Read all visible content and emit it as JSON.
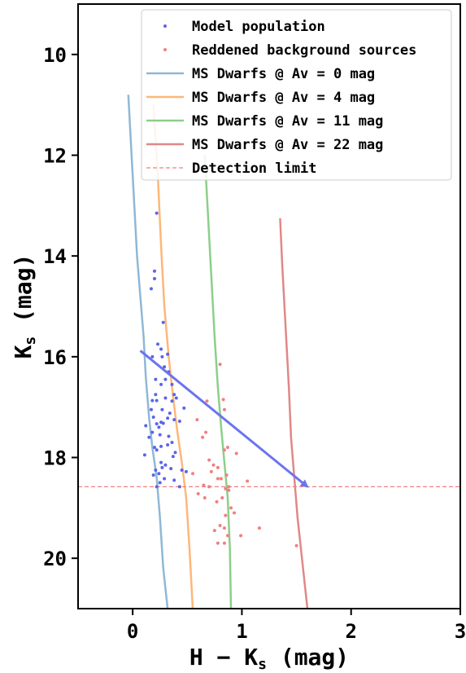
{
  "chart_data": {
    "type": "scatter",
    "xlabel": "H − K",
    "xlabel_sub": "s",
    "xlabel_unit": " (mag)",
    "ylabel": "K",
    "ylabel_sub": "s",
    "ylabel_unit": " (mag)",
    "xlim": [
      -0.5,
      3.0
    ],
    "ylim": [
      21.0,
      9.0
    ],
    "y_inverted": true,
    "xticks": [
      0,
      1,
      2,
      3
    ],
    "yticks": [
      10,
      12,
      14,
      16,
      18,
      20
    ],
    "legend_position": "top-right",
    "series": [
      {
        "name": "Model population",
        "kind": "scatter",
        "color": "#5b65e8",
        "points": [
          [
            0.22,
            13.15
          ],
          [
            0.2,
            14.3
          ],
          [
            0.17,
            14.65
          ],
          [
            0.2,
            14.45
          ],
          [
            0.28,
            15.32
          ],
          [
            0.26,
            15.85
          ],
          [
            0.23,
            15.75
          ],
          [
            0.27,
            16.0
          ],
          [
            0.32,
            15.95
          ],
          [
            0.18,
            16.0
          ],
          [
            0.33,
            16.3
          ],
          [
            0.29,
            16.2
          ],
          [
            0.21,
            16.45
          ],
          [
            0.26,
            16.55
          ],
          [
            0.3,
            16.45
          ],
          [
            0.36,
            16.55
          ],
          [
            0.21,
            16.75
          ],
          [
            0.3,
            16.82
          ],
          [
            0.38,
            16.75
          ],
          [
            0.18,
            16.87
          ],
          [
            0.22,
            16.87
          ],
          [
            0.36,
            16.88
          ],
          [
            0.4,
            16.82
          ],
          [
            0.47,
            17.02
          ],
          [
            0.17,
            17.05
          ],
          [
            0.27,
            17.05
          ],
          [
            0.34,
            17.12
          ],
          [
            0.19,
            17.2
          ],
          [
            0.32,
            17.22
          ],
          [
            0.38,
            17.25
          ],
          [
            0.43,
            17.28
          ],
          [
            0.26,
            17.3
          ],
          [
            0.28,
            17.32
          ],
          [
            0.22,
            17.33
          ],
          [
            0.12,
            17.37
          ],
          [
            0.24,
            17.4
          ],
          [
            0.18,
            17.5
          ],
          [
            0.25,
            17.55
          ],
          [
            0.33,
            17.58
          ],
          [
            0.15,
            17.6
          ],
          [
            0.36,
            17.7
          ],
          [
            0.32,
            17.75
          ],
          [
            0.26,
            17.78
          ],
          [
            0.2,
            17.8
          ],
          [
            0.22,
            17.85
          ],
          [
            0.39,
            17.9
          ],
          [
            0.11,
            17.95
          ],
          [
            0.37,
            17.98
          ],
          [
            0.26,
            18.1
          ],
          [
            0.3,
            18.15
          ],
          [
            0.27,
            18.2
          ],
          [
            0.35,
            18.22
          ],
          [
            0.21,
            18.25
          ],
          [
            0.24,
            18.32
          ],
          [
            0.45,
            18.25
          ],
          [
            0.49,
            18.28
          ],
          [
            0.19,
            18.35
          ],
          [
            0.29,
            18.42
          ],
          [
            0.38,
            18.45
          ],
          [
            0.25,
            18.5
          ],
          [
            0.43,
            18.58
          ],
          [
            0.22,
            18.58
          ]
        ]
      },
      {
        "name": "Reddened background sources",
        "kind": "scatter",
        "color": "#f08080",
        "points": [
          [
            0.8,
            16.15
          ],
          [
            0.68,
            16.88
          ],
          [
            0.83,
            16.85
          ],
          [
            0.84,
            17.05
          ],
          [
            0.59,
            17.25
          ],
          [
            0.67,
            17.5
          ],
          [
            0.64,
            17.6
          ],
          [
            0.87,
            17.8
          ],
          [
            0.95,
            17.92
          ],
          [
            0.84,
            17.85
          ],
          [
            0.7,
            18.05
          ],
          [
            0.74,
            18.15
          ],
          [
            0.78,
            18.2
          ],
          [
            0.72,
            18.28
          ],
          [
            0.55,
            18.32
          ],
          [
            0.86,
            18.35
          ],
          [
            0.78,
            18.42
          ],
          [
            0.81,
            18.42
          ],
          [
            1.05,
            18.47
          ],
          [
            0.65,
            18.55
          ],
          [
            0.7,
            18.58
          ],
          [
            0.88,
            18.58
          ],
          [
            0.85,
            18.62
          ],
          [
            0.88,
            18.65
          ],
          [
            0.6,
            18.72
          ],
          [
            0.66,
            18.8
          ],
          [
            0.82,
            18.8
          ],
          [
            0.77,
            18.88
          ],
          [
            0.9,
            19.0
          ],
          [
            0.93,
            19.1
          ],
          [
            0.85,
            19.15
          ],
          [
            0.8,
            19.35
          ],
          [
            0.84,
            19.4
          ],
          [
            0.75,
            19.45
          ],
          [
            1.16,
            19.4
          ],
          [
            0.87,
            19.55
          ],
          [
            0.99,
            19.55
          ],
          [
            0.78,
            19.7
          ],
          [
            0.84,
            19.7
          ],
          [
            1.5,
            19.75
          ]
        ]
      },
      {
        "name": "MS Dwarfs @ Av = 0 mag",
        "kind": "line",
        "color": "#8fb8d6",
        "points": [
          [
            -0.04,
            10.8
          ],
          [
            -0.02,
            11.6
          ],
          [
            0.0,
            12.4
          ],
          [
            0.02,
            13.2
          ],
          [
            0.04,
            14.0
          ],
          [
            0.07,
            14.8
          ],
          [
            0.1,
            15.6
          ],
          [
            0.12,
            16.4
          ],
          [
            0.15,
            17.2
          ],
          [
            0.18,
            17.8
          ],
          [
            0.22,
            18.4
          ],
          [
            0.25,
            19.2
          ],
          [
            0.28,
            20.2
          ],
          [
            0.32,
            21.0
          ]
        ]
      },
      {
        "name": "MS Dwarfs @ Av = 4 mag",
        "kind": "line",
        "color": "#fdb779",
        "points": [
          [
            0.19,
            11.0
          ],
          [
            0.23,
            12.4
          ],
          [
            0.26,
            13.8
          ],
          [
            0.29,
            15.0
          ],
          [
            0.33,
            16.0
          ],
          [
            0.37,
            16.8
          ],
          [
            0.41,
            17.5
          ],
          [
            0.45,
            18.1
          ],
          [
            0.49,
            18.8
          ],
          [
            0.52,
            19.8
          ],
          [
            0.55,
            21.0
          ]
        ]
      },
      {
        "name": "MS Dwarfs @ Av = 11 mag",
        "kind": "line",
        "color": "#8ccf8a",
        "points": [
          [
            0.66,
            12.0
          ],
          [
            0.69,
            13.2
          ],
          [
            0.72,
            14.4
          ],
          [
            0.75,
            15.6
          ],
          [
            0.78,
            16.6
          ],
          [
            0.81,
            17.4
          ],
          [
            0.84,
            18.1
          ],
          [
            0.87,
            18.8
          ],
          [
            0.89,
            19.8
          ],
          [
            0.9,
            21.0
          ]
        ]
      },
      {
        "name": "MS Dwarfs @ Av = 22 mag",
        "kind": "line",
        "color": "#e08888",
        "points": [
          [
            1.35,
            13.25
          ],
          [
            1.37,
            14.2
          ],
          [
            1.4,
            15.4
          ],
          [
            1.43,
            16.6
          ],
          [
            1.45,
            17.6
          ],
          [
            1.48,
            18.4
          ],
          [
            1.51,
            19.2
          ],
          [
            1.56,
            20.2
          ],
          [
            1.6,
            21.0
          ]
        ]
      },
      {
        "name": "Detection limit",
        "kind": "hline",
        "color": "#f08080",
        "y": 18.58
      }
    ],
    "arrow": {
      "color": "#6b74f0",
      "from": [
        0.07,
        15.88
      ],
      "to": [
        1.6,
        18.58
      ]
    }
  }
}
